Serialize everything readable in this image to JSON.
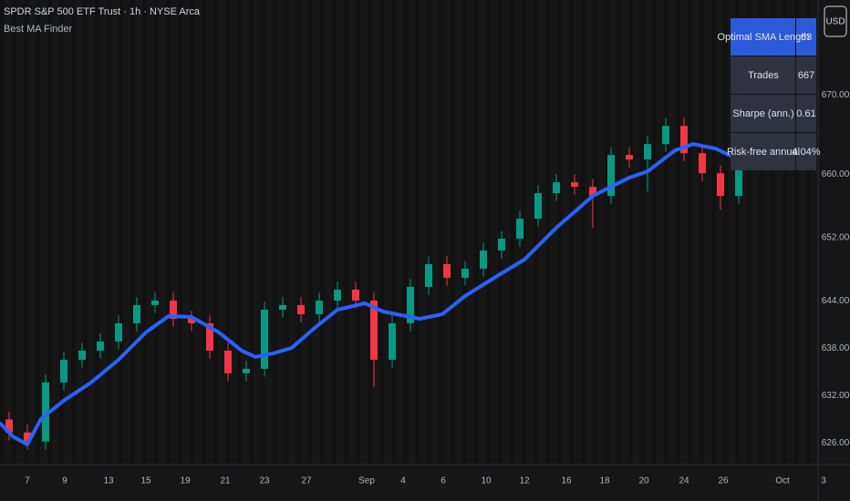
{
  "header": {
    "title": "SPDR S&P 500 ETF Trust · 1h · NYSE Arca",
    "indicator": "Best MA Finder",
    "currency_button": "USD"
  },
  "table": {
    "rows": [
      [
        "Optimal SMA Length",
        "63"
      ],
      [
        "Trades",
        "667"
      ],
      [
        "Sharpe (ann.)",
        "0.61"
      ],
      [
        "Risk-free annual",
        "4.04%"
      ]
    ],
    "header_color": "#2b5ad8",
    "row_color": "#2f3340"
  },
  "chart_data": {
    "type": "candlestick",
    "x": [
      1,
      3,
      5,
      7,
      9,
      11,
      13,
      15,
      17,
      19,
      21,
      23,
      25,
      27,
      29,
      31,
      33,
      35,
      37,
      39,
      41,
      43,
      45,
      47,
      49,
      51,
      53,
      55,
      57,
      59,
      61,
      63,
      65,
      67,
      69,
      71,
      73,
      75,
      77,
      79,
      81
    ],
    "open": [
      629.0,
      627.36,
      626.21,
      633.68,
      636.55,
      637.7,
      638.85,
      641.15,
      643.45,
      644.02,
      641.72,
      641.15,
      637.7,
      634.83,
      635.4,
      642.87,
      643.45,
      642.3,
      644.02,
      645.4,
      644.02,
      636.55,
      641.15,
      645.75,
      648.62,
      646.9,
      648.05,
      650.34,
      651.84,
      654.37,
      657.59,
      658.97,
      658.39,
      657.24,
      662.41,
      661.84,
      663.79,
      666.09,
      662.64,
      660.11,
      657.24
    ],
    "high": [
      630.0,
      628.36,
      634.68,
      637.55,
      638.7,
      639.85,
      642.15,
      644.45,
      645.02,
      645.02,
      642.72,
      642.15,
      638.7,
      636.4,
      643.87,
      644.45,
      644.45,
      645.02,
      646.4,
      646.4,
      645.02,
      642.15,
      646.75,
      649.62,
      649.62,
      649.05,
      651.34,
      652.84,
      655.37,
      658.59,
      659.97,
      659.97,
      659.39,
      663.41,
      663.41,
      664.79,
      667.09,
      667.09,
      663.64,
      661.11,
      662.26
    ],
    "low": [
      626.36,
      625.21,
      625.21,
      632.68,
      635.55,
      636.7,
      637.85,
      640.15,
      642.45,
      640.72,
      640.15,
      636.7,
      633.83,
      633.83,
      634.4,
      641.87,
      641.3,
      641.3,
      643.02,
      643.02,
      633.1,
      635.55,
      640.15,
      644.75,
      645.9,
      645.9,
      647.05,
      649.34,
      650.84,
      653.37,
      656.59,
      657.39,
      653.22,
      656.24,
      660.84,
      657.8,
      662.79,
      661.64,
      659.11,
      655.5,
      656.24
    ],
    "close": [
      627.36,
      626.21,
      633.68,
      636.55,
      637.7,
      638.85,
      641.15,
      643.45,
      644.02,
      641.72,
      641.15,
      637.7,
      634.83,
      635.4,
      642.87,
      643.45,
      642.3,
      644.02,
      645.4,
      644.02,
      636.55,
      641.15,
      645.75,
      648.62,
      646.9,
      648.05,
      650.34,
      651.84,
      654.37,
      657.59,
      658.97,
      658.39,
      657.24,
      662.41,
      661.84,
      663.79,
      666.09,
      662.64,
      660.11,
      657.24,
      661.26
    ],
    "up_color": "#089981",
    "down_color": "#f23645",
    "overlay": {
      "x": [
        0,
        1.5,
        3.0,
        4.5,
        7.0,
        10.0,
        13.0,
        16.0,
        18.5,
        21.0,
        24.0,
        26.5,
        28.0,
        30.0,
        32.0,
        34.5,
        37.0,
        40.0,
        42.0,
        46.0,
        48.5,
        51.0,
        55.0,
        57.5,
        61.0,
        65.0,
        69.0,
        71.0,
        74.0,
        76.0,
        78.5,
        81.0
      ],
      "values": [
        628.51,
        626.78,
        625.86,
        629.08,
        631.38,
        633.68,
        636.55,
        640.0,
        642.07,
        641.95,
        640.0,
        637.7,
        636.9,
        637.36,
        638.05,
        640.57,
        642.87,
        643.68,
        642.64,
        641.72,
        642.3,
        644.6,
        647.47,
        649.2,
        653.22,
        657.24,
        659.54,
        660.34,
        662.99,
        663.79,
        663.22,
        661.84
      ],
      "color": "#2962ff"
    },
    "xlim": [
      0,
      93.2
    ],
    "xticks": [
      {
        "value": 3.0,
        "label": "7"
      },
      {
        "value": 7.1,
        "label": "9"
      },
      {
        "value": 11.9,
        "label": "13"
      },
      {
        "value": 16.0,
        "label": "15"
      },
      {
        "value": 20.3,
        "label": "19"
      },
      {
        "value": 24.7,
        "label": "21"
      },
      {
        "value": 29.0,
        "label": "23"
      },
      {
        "value": 33.6,
        "label": "27"
      },
      {
        "value": 40.2,
        "label": "Sep"
      },
      {
        "value": 44.2,
        "label": "4"
      },
      {
        "value": 48.6,
        "label": "6"
      },
      {
        "value": 53.3,
        "label": "10"
      },
      {
        "value": 57.5,
        "label": "12"
      },
      {
        "value": 62.1,
        "label": "16"
      },
      {
        "value": 66.3,
        "label": "18"
      },
      {
        "value": 70.6,
        "label": "20"
      },
      {
        "value": 75.0,
        "label": "24"
      },
      {
        "value": 79.3,
        "label": "26"
      },
      {
        "value": 85.8,
        "label": "Oct"
      },
      {
        "value": 90.3,
        "label": "3"
      }
    ],
    "ylim": [
      623.3,
      682
    ],
    "yticks": [
      {
        "value": 626,
        "label": "626.00"
      },
      {
        "value": 632,
        "label": "632.00"
      },
      {
        "value": 638,
        "label": "638.00"
      },
      {
        "value": 644,
        "label": "644.00"
      },
      {
        "value": 652,
        "label": "652.00"
      },
      {
        "value": 660,
        "label": "660.00"
      },
      {
        "value": 670,
        "label": "670.00"
      }
    ],
    "grid": false
  }
}
